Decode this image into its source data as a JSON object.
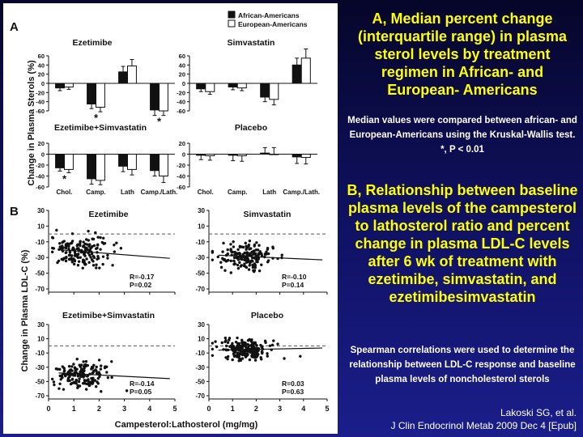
{
  "figure": {
    "panel_a_letter": "A",
    "panel_b_letter": "B",
    "legend": [
      {
        "label": "African-Americans",
        "color": "#111111"
      },
      {
        "label": "European-Americans",
        "color": "#ffffff"
      }
    ],
    "a_ylabel": "Change in Plasma Sterols (%)",
    "b_ylabel": "Change in Plasma LDL-C (%)",
    "b_xlabel": "Campesterol:Lathosterol (mg/mg)"
  },
  "chart_data": [
    {
      "type": "bar",
      "title": "Ezetimibe",
      "categories": [
        "Chol.",
        "Camp.",
        "Lath",
        "Camp./Lath."
      ],
      "series": [
        {
          "name": "African-Americans",
          "values": [
            -10,
            -45,
            25,
            -58
          ],
          "err": [
            6,
            10,
            12,
            12
          ]
        },
        {
          "name": "European-Americans",
          "values": [
            -8,
            -52,
            38,
            -60
          ],
          "err": [
            5,
            10,
            14,
            10
          ]
        }
      ],
      "ylim": [
        -60,
        60
      ],
      "yticks": [
        60,
        40,
        20,
        0,
        -20,
        -40,
        -60
      ],
      "annotations": [
        {
          "text": "*",
          "category": "Camp."
        },
        {
          "text": "*",
          "category": "Camp./Lath."
        }
      ]
    },
    {
      "type": "bar",
      "title": "Simvastatin",
      "categories": [
        "Chol.",
        "Camp.",
        "Lath",
        "Camp./Lath."
      ],
      "series": [
        {
          "name": "African-Americans",
          "values": [
            -12,
            -8,
            -30,
            40
          ],
          "err": [
            6,
            6,
            10,
            15
          ]
        },
        {
          "name": "European-Americans",
          "values": [
            -18,
            -10,
            -35,
            55
          ],
          "err": [
            6,
            6,
            12,
            20
          ]
        }
      ],
      "ylim": [
        -60,
        60
      ],
      "yticks": [
        60,
        40,
        20,
        0,
        -20,
        -40,
        -60
      ],
      "annotations": []
    },
    {
      "type": "bar",
      "title": "Ezetimibe+Simvastatin",
      "categories": [
        "Chol.",
        "Camp.",
        "Lath",
        "Camp./Lath."
      ],
      "series": [
        {
          "name": "African-Americans",
          "values": [
            -25,
            -45,
            -22,
            -30
          ],
          "err": [
            6,
            10,
            10,
            10
          ]
        },
        {
          "name": "European-Americans",
          "values": [
            -28,
            -48,
            -28,
            -40
          ],
          "err": [
            6,
            8,
            10,
            12
          ]
        }
      ],
      "ylim": [
        -60,
        20
      ],
      "yticks": [
        20,
        0,
        -20,
        -40,
        -60
      ],
      "annotations": [
        {
          "text": "*",
          "category": "Chol."
        }
      ]
    },
    {
      "type": "bar",
      "title": "Placebo",
      "categories": [
        "Chol.",
        "Camp.",
        "Lath",
        "Camp./Lath."
      ],
      "series": [
        {
          "name": "African-Americans",
          "values": [
            -2,
            -2,
            2,
            -5
          ],
          "err": [
            8,
            10,
            10,
            12
          ]
        },
        {
          "name": "European-Americans",
          "values": [
            -3,
            -3,
            0,
            -6
          ],
          "err": [
            8,
            10,
            12,
            12
          ]
        }
      ],
      "ylim": [
        -60,
        20
      ],
      "yticks": [
        20,
        0,
        -20,
        -40,
        -60
      ],
      "annotations": []
    },
    {
      "type": "scatter",
      "title": "Ezetimibe",
      "xlim": [
        0,
        5
      ],
      "ylim": [
        -70,
        30
      ],
      "yticks": [
        30,
        10,
        -10,
        -30,
        -50,
        -70
      ],
      "stats": [
        "R=-0.17",
        "P=0.02"
      ],
      "center": [
        1.3,
        -22
      ],
      "spread": [
        0.45,
        10
      ],
      "n": 170,
      "trend": [
        [
          0.4,
          -20
        ],
        [
          4.8,
          -31
        ]
      ]
    },
    {
      "type": "scatter",
      "title": "Simvastatin",
      "xlim": [
        0,
        5
      ],
      "ylim": [
        -70,
        30
      ],
      "yticks": [
        30,
        10,
        -10,
        -30,
        -50,
        -70
      ],
      "stats": [
        "R=-0.10",
        "P=0.14"
      ],
      "center": [
        1.5,
        -28
      ],
      "spread": [
        0.55,
        9
      ],
      "n": 170,
      "trend": [
        [
          0.4,
          -27
        ],
        [
          4.8,
          -33
        ]
      ]
    },
    {
      "type": "scatter",
      "title": "Ezetimibe+Simvastatin",
      "xlim": [
        0,
        5
      ],
      "ylim": [
        -70,
        30
      ],
      "yticks": [
        30,
        10,
        -10,
        -30,
        -50,
        -70
      ],
      "stats": [
        "R=-0.14",
        "P=0.05"
      ],
      "center": [
        1.3,
        -40
      ],
      "spread": [
        0.45,
        10
      ],
      "n": 170,
      "trend": [
        [
          0.4,
          -38
        ],
        [
          4.8,
          -46
        ]
      ]
    },
    {
      "type": "scatter",
      "title": "Placebo",
      "xlim": [
        0,
        5
      ],
      "ylim": [
        -70,
        30
      ],
      "yticks": [
        30,
        10,
        -10,
        -30,
        -50,
        -70
      ],
      "stats": [
        "R=0.03",
        "P=0.63"
      ],
      "center": [
        1.5,
        -5
      ],
      "spread": [
        0.5,
        8
      ],
      "n": 200,
      "trend": [
        [
          0.4,
          -6
        ],
        [
          4.8,
          -3
        ]
      ]
    }
  ],
  "b_xticks": [
    "0",
    "1",
    "2",
    "3",
    "4",
    "5"
  ],
  "sidebar": {
    "heading_a": "A, Median percent change (interquartile range) in plasma sterol levels by treatment regimen in African- and European- Americans",
    "note_a": "Median values were compared between african- and European-Americans using the Kruskal-Wallis test. *, P < 0.01",
    "heading_b": "B, Relationship between baseline plasma levels of the campesterol to lathosterol ratio and percent change in plasma LDL-C levels after 6 wk of treatment with ezetimibe, simvastatin, and ezetimibesimvastatin",
    "note_b": "Spearman correlations were used to determine the relationship between LDL-C response and baseline plasma levels of noncholesterol sterols"
  },
  "citation": {
    "line1": "Lakoski SG, et al.",
    "line2": "J Clin Endocrinol Metab 2009 Dec 4 [Epub]"
  }
}
